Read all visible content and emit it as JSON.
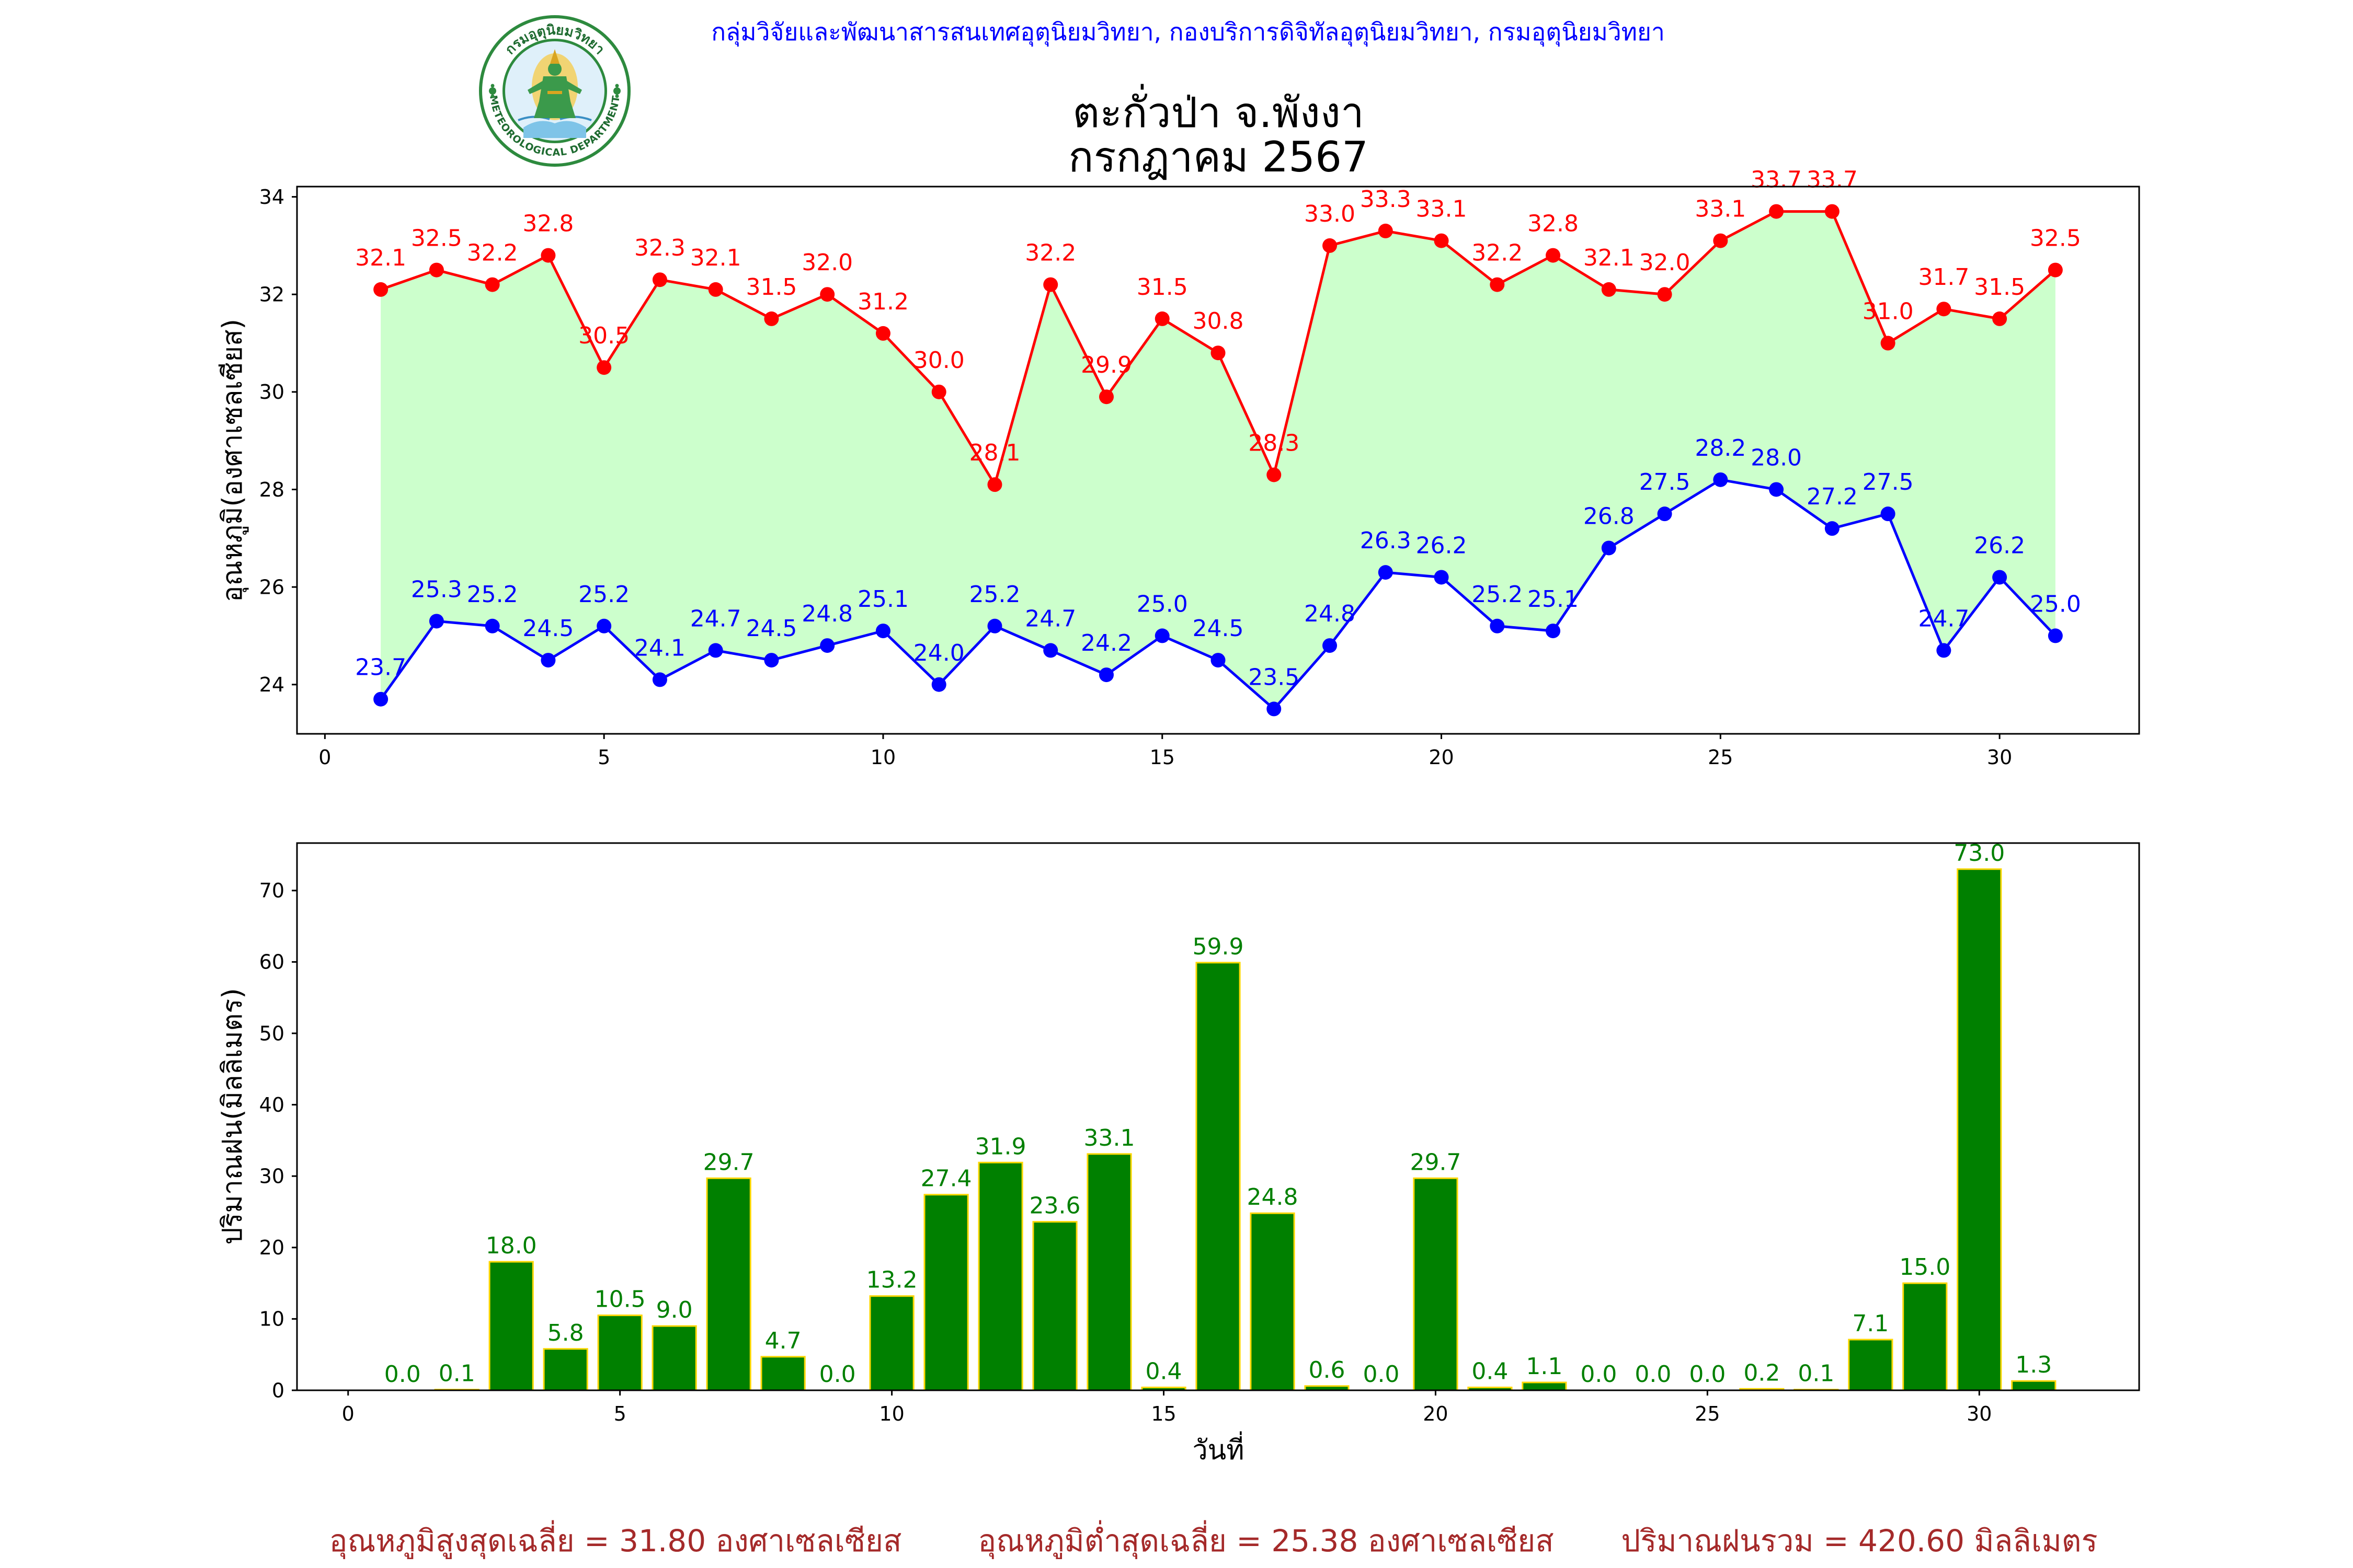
{
  "header": {
    "agency_line": "กลุ่มวิจัยและพัฒนาสารสนเทศอุตุนิยมวิทยา, กองบริการดิจิทัลอุตุนิยมวิทยา, กรมอุตุนิยมวิทยา"
  },
  "logo": {
    "icon": "meteorological-department-seal",
    "text_th": "กรมอุตุนิยมวิทยา",
    "text_en": "METEOROLOGICAL DEPARTMENT"
  },
  "title": {
    "station": "ตะกั่วป่า จ.พังงา",
    "period": "กรกฎาคม 2567"
  },
  "colors": {
    "header_text": "#0000ff",
    "title_text": "#000000",
    "footer_text": "#a52a2a"
  },
  "chart_data": [
    {
      "type": "line",
      "ylabel": "อุณหภูมิ(องศาเซลเซียส)",
      "x": [
        1,
        2,
        3,
        4,
        5,
        6,
        7,
        8,
        9,
        10,
        11,
        12,
        13,
        14,
        15,
        16,
        17,
        18,
        19,
        20,
        21,
        22,
        23,
        24,
        25,
        26,
        27,
        28,
        29,
        30,
        31
      ],
      "xlim": [
        -0.5,
        32.5
      ],
      "ylim": [
        22.99,
        34.21
      ],
      "x_ticks": [
        0,
        5,
        10,
        15,
        20,
        25,
        30
      ],
      "y_ticks": [
        24,
        26,
        28,
        30,
        32,
        34
      ],
      "grid": false,
      "fill_between_series": true,
      "fill_color": "#ccffcc",
      "series": [
        {
          "color": "#ff0000",
          "marker": "circle",
          "values": [
            32.1,
            32.5,
            32.2,
            32.8,
            30.5,
            32.3,
            32.1,
            31.5,
            32.0,
            31.2,
            30.0,
            28.1,
            32.2,
            29.9,
            31.5,
            30.8,
            28.3,
            33.0,
            33.3,
            33.1,
            32.2,
            32.8,
            32.1,
            32.0,
            33.1,
            33.7,
            33.7,
            31.0,
            31.7,
            31.5,
            32.5
          ]
        },
        {
          "color": "#0000ff",
          "marker": "circle",
          "values": [
            23.7,
            25.3,
            25.2,
            24.5,
            25.2,
            24.1,
            24.7,
            24.5,
            24.8,
            25.1,
            24.0,
            25.2,
            24.7,
            24.2,
            25.0,
            24.5,
            23.5,
            24.8,
            26.3,
            26.2,
            25.2,
            25.1,
            26.8,
            27.5,
            28.2,
            28.0,
            27.2,
            27.5,
            24.7,
            26.2,
            25.0
          ]
        }
      ]
    },
    {
      "type": "bar",
      "ylabel": "ปริมาณฝน(มิลลิเมตร)",
      "xlabel": "วันที่",
      "x": [
        1,
        2,
        3,
        4,
        5,
        6,
        7,
        8,
        9,
        10,
        11,
        12,
        13,
        14,
        15,
        16,
        17,
        18,
        19,
        20,
        21,
        22,
        23,
        24,
        25,
        26,
        27,
        28,
        29,
        30,
        31
      ],
      "xlim": [
        -0.94,
        32.94
      ],
      "ylim": [
        0,
        76.65
      ],
      "x_ticks": [
        0,
        5,
        10,
        15,
        20,
        25,
        30
      ],
      "y_ticks": [
        0,
        10,
        20,
        30,
        40,
        50,
        60,
        70
      ],
      "grid": false,
      "bar_color": "#008000",
      "bar_edge_color": "#ffd700",
      "label_color": "#008000",
      "values": [
        0.0,
        0.1,
        18.0,
        5.8,
        10.5,
        9.0,
        29.7,
        4.7,
        0.0,
        13.2,
        27.4,
        31.9,
        23.6,
        33.1,
        0.4,
        59.9,
        24.8,
        0.6,
        0.0,
        29.7,
        0.4,
        1.1,
        0.0,
        0.0,
        0.0,
        0.2,
        0.1,
        7.1,
        15.0,
        73.0,
        1.3
      ]
    }
  ],
  "footer": {
    "avg_max": "อุณหภูมิสูงสุดเฉลี่ย = 31.80 องศาเซลเซียส",
    "avg_min": "อุณหภูมิต่ำสุดเฉลี่ย = 25.38 องศาเซลเซียส",
    "total_rain": "ปริมาณฝนรวม = 420.60 มิลลิเมตร"
  }
}
